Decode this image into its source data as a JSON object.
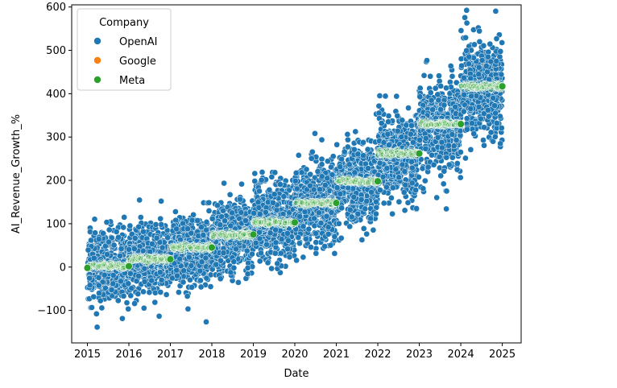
{
  "chart_data": {
    "type": "scatter",
    "title": "",
    "xlabel": "Date",
    "ylabel": "AI_Revenue_Growth_%",
    "xlim": [
      "2014-08-15",
      "2025-06-15"
    ],
    "ylim": [
      -175,
      605
    ],
    "x_ticks": [
      "2015",
      "2016",
      "2017",
      "2018",
      "2019",
      "2020",
      "2021",
      "2022",
      "2023",
      "2024",
      "2025"
    ],
    "y_ticks": [
      -100,
      0,
      100,
      200,
      300,
      400,
      500,
      600
    ],
    "grid": false,
    "legend": {
      "title": "Company",
      "placement": "top-left",
      "entries": [
        {
          "name": "OpenAI",
          "color": "#1f77b4"
        },
        {
          "name": "Google",
          "color": "#ff7f0e"
        },
        {
          "name": "Meta",
          "color": "#2ca02c"
        }
      ]
    },
    "series": [
      {
        "name": "OpenAI",
        "color": "#1f77b4",
        "points_per_year": 480,
        "trend": [
          {
            "year": 2015,
            "center": 0,
            "spread": 48
          },
          {
            "year": 2016,
            "center": 17,
            "spread": 48
          },
          {
            "year": 2017,
            "center": 40,
            "spread": 50
          },
          {
            "year": 2018,
            "center": 68,
            "spread": 52
          },
          {
            "year": 2019,
            "center": 105,
            "spread": 55
          },
          {
            "year": 2020,
            "center": 148,
            "spread": 58
          },
          {
            "year": 2021,
            "center": 195,
            "spread": 60
          },
          {
            "year": 2022,
            "center": 255,
            "spread": 62
          },
          {
            "year": 2023,
            "center": 325,
            "spread": 65
          },
          {
            "year": 2024,
            "center": 415,
            "spread": 68
          }
        ]
      },
      {
        "name": "Meta",
        "color": "#2ca02c",
        "band_points_per_year": 120,
        "yearly_values": [
          {
            "date": "2015-01-01",
            "value": -2
          },
          {
            "date": "2016-01-01",
            "value": 2
          },
          {
            "date": "2017-01-01",
            "value": 18
          },
          {
            "date": "2018-01-01",
            "value": 45
          },
          {
            "date": "2019-01-01",
            "value": 75
          },
          {
            "date": "2020-01-01",
            "value": 103
          },
          {
            "date": "2021-01-01",
            "value": 148
          },
          {
            "date": "2022-01-01",
            "value": 198
          },
          {
            "date": "2023-01-01",
            "value": 262
          },
          {
            "date": "2024-01-01",
            "value": 330
          },
          {
            "date": "2025-01-01",
            "value": 417
          }
        ]
      }
    ]
  }
}
